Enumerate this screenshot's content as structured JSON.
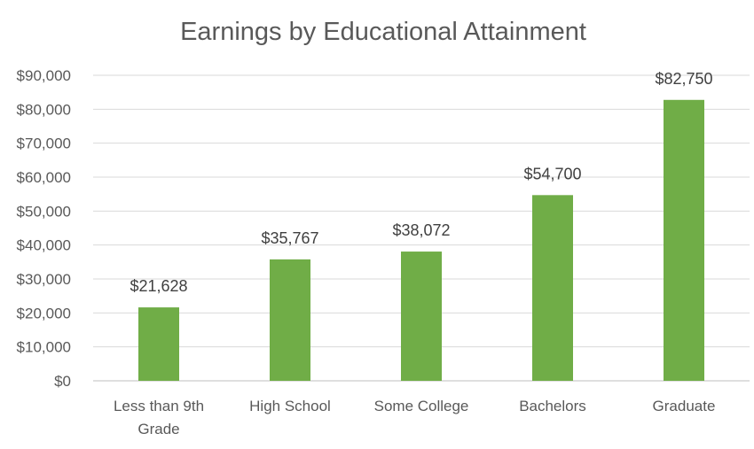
{
  "chart_data": {
    "type": "bar",
    "title": "Earnings by Educational Attainment",
    "xlabel": "",
    "ylabel": "",
    "categories": [
      [
        "Less than 9th",
        "Grade"
      ],
      [
        "High School"
      ],
      [
        "Some College"
      ],
      [
        "Bachelors"
      ],
      [
        "Graduate"
      ]
    ],
    "values": [
      21628,
      35767,
      38072,
      54700,
      82750
    ],
    "data_labels": [
      "$21,628",
      "$35,767",
      "$38,072",
      "$54,700",
      "$82,750"
    ],
    "ylim": [
      0,
      90000
    ],
    "y_ticks": [
      0,
      10000,
      20000,
      30000,
      40000,
      50000,
      60000,
      70000,
      80000,
      90000
    ],
    "y_tick_labels": [
      "$0",
      "$10,000",
      "$20,000",
      "$30,000",
      "$40,000",
      "$50,000",
      "$60,000",
      "$70,000",
      "$80,000",
      "$90,000"
    ],
    "grid": true,
    "legend": "none",
    "bar_color": "#70ad47"
  }
}
